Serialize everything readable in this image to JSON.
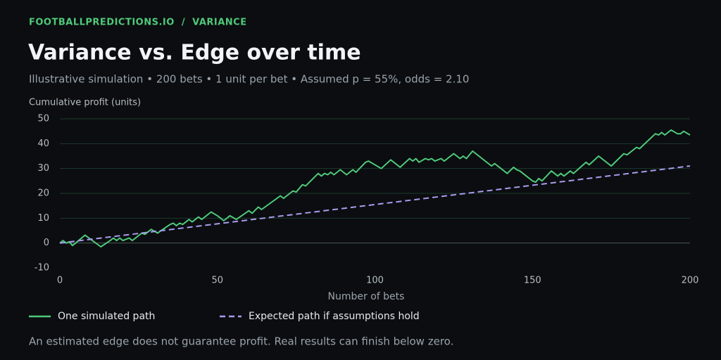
{
  "chart_data": {
    "type": "line",
    "breadcrumb": "FOOTBALLPREDICTIONS.IO  /  VARIANCE",
    "title": "Variance vs. Edge over time",
    "subtitle": "Illustrative simulation • 200 bets • 1 unit per bet • Assumed p = 55%, odds = 2.10",
    "y_label": "Cumulative profit (units)",
    "x_label": "Number of bets",
    "note": "An estimated edge does not guarantee profit. Real results can finish below zero.",
    "xlim": [
      0,
      200
    ],
    "xticks": [
      0,
      50,
      100,
      150,
      200
    ],
    "ylim": [
      -10,
      50
    ],
    "yticks": [
      -10,
      0,
      10,
      20,
      30,
      40,
      50
    ],
    "grid": true,
    "series": [
      {
        "name": "One simulated path",
        "color": "#4fc97a",
        "dash": false,
        "x": [
          0,
          1,
          2,
          3,
          4,
          5,
          8,
          13,
          16,
          17,
          18,
          19,
          20,
          22,
          23,
          26,
          27,
          29,
          31,
          35,
          36,
          37,
          38,
          39,
          41,
          42,
          44,
          45,
          48,
          50,
          52,
          54,
          56,
          60,
          61,
          63,
          64,
          70,
          71,
          74,
          75,
          77,
          78,
          82,
          83,
          84,
          85,
          86,
          87,
          89,
          91,
          93,
          94,
          97,
          98,
          102,
          105,
          108,
          111,
          112,
          113,
          114,
          116,
          117,
          118,
          119,
          121,
          122,
          125,
          127,
          128,
          129,
          131,
          137,
          138,
          142,
          144,
          145,
          146,
          150,
          151,
          152,
          153,
          156,
          157,
          158,
          159,
          160,
          162,
          163,
          167,
          168,
          171,
          175,
          179,
          180,
          183,
          184,
          189,
          190,
          191,
          192,
          194,
          196,
          197,
          198,
          200
        ],
        "values": [
          0,
          1,
          0,
          0.5,
          -1,
          0,
          3.2,
          -1.5,
          1,
          2,
          1,
          2,
          1,
          2,
          1,
          4,
          3.5,
          5.5,
          4,
          7.5,
          8,
          7,
          8,
          7.5,
          9.5,
          8.5,
          10.5,
          9.5,
          12.5,
          11,
          9,
          11,
          9.5,
          13,
          12,
          14.5,
          13.5,
          19,
          18,
          21,
          20.5,
          23.5,
          23,
          28,
          27,
          28,
          27.5,
          28.5,
          27.5,
          29.5,
          27.5,
          29.5,
          28.5,
          32.5,
          33,
          30,
          33.5,
          30.5,
          34,
          33,
          34,
          32.5,
          34,
          33.5,
          34,
          33,
          34,
          33,
          36,
          34,
          35,
          34,
          37,
          31,
          32,
          28,
          30.5,
          29.5,
          29,
          25,
          24.5,
          26,
          25,
          29,
          28,
          27,
          28,
          27,
          29,
          28,
          32.5,
          31.5,
          35,
          31,
          36,
          35.5,
          38.5,
          38,
          44,
          43.5,
          44.5,
          43.5,
          45.5,
          44,
          44,
          45,
          43.5
        ]
      },
      {
        "name": "Expected path if assumptions hold",
        "color": "#a99cf0",
        "dash": true,
        "x": [
          0,
          200
        ],
        "values": [
          0,
          31
        ]
      }
    ]
  }
}
